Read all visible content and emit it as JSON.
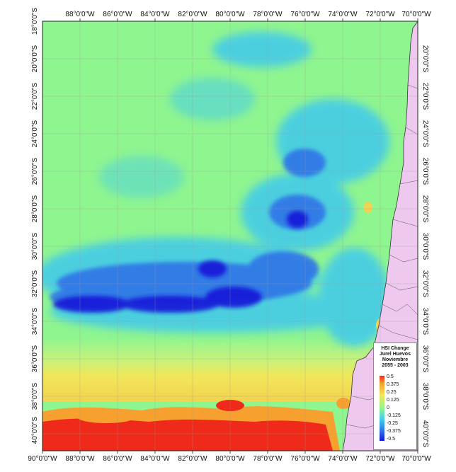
{
  "map": {
    "top_labels": [
      "88°0'0\"W",
      "86°0'0\"W",
      "84°0'0\"W",
      "82°0'0\"W",
      "80°0'0\"W",
      "78°0'0\"W",
      "76°0'0\"W",
      "74°0'0\"W",
      "72°0'0\"W",
      "70°0'0\"W"
    ],
    "bottom_labels": [
      "90°0'0\"W",
      "88°0'0\"W",
      "86°0'0\"W",
      "84°0'0\"W",
      "82°0'0\"W",
      "80°0'0\"W",
      "78°0'0\"W",
      "76°0'0\"W",
      "74°0'0\"W",
      "72°0'0\"W",
      "70°0'0\"W"
    ],
    "left_labels": [
      "18°0'0\"S",
      "20°0'0\"S",
      "22°0'0\"S",
      "24°0'0\"S",
      "26°0'0\"S",
      "28°0'0\"S",
      "30°0'0\"S",
      "32°0'0\"S",
      "34°0'0\"S",
      "36°0'0\"S",
      "38°0'0\"S",
      "40°0'0\"S"
    ],
    "right_labels": [
      "20°0'0\"S",
      "22°0'0\"S",
      "24°0'0\"S",
      "26°0'0\"S",
      "28°0'0\"S",
      "30°0'0\"S",
      "32°0'0\"S",
      "34°0'0\"S",
      "36°0'0\"S",
      "38°0'0\"S",
      "40°0'0\"S"
    ],
    "colors": {
      "neutral": "#8ff58f",
      "land": "#efc8ef",
      "light_blue": "#3fc9ee",
      "blue": "#2e6ee8",
      "dark_blue": "#1616d8",
      "yellow": "#f2e65a",
      "orange": "#f6a030",
      "red": "#ef2a1a"
    }
  },
  "legend": {
    "title_lines": [
      "HSI Change",
      "Jurel Huevos",
      "Noviembre",
      "2055 - 2003"
    ],
    "labels": [
      "0.5",
      "0.375",
      "0.25",
      "0.125",
      "0",
      "-0.125",
      "-0.25",
      "-0.375",
      "-0.5"
    ]
  }
}
